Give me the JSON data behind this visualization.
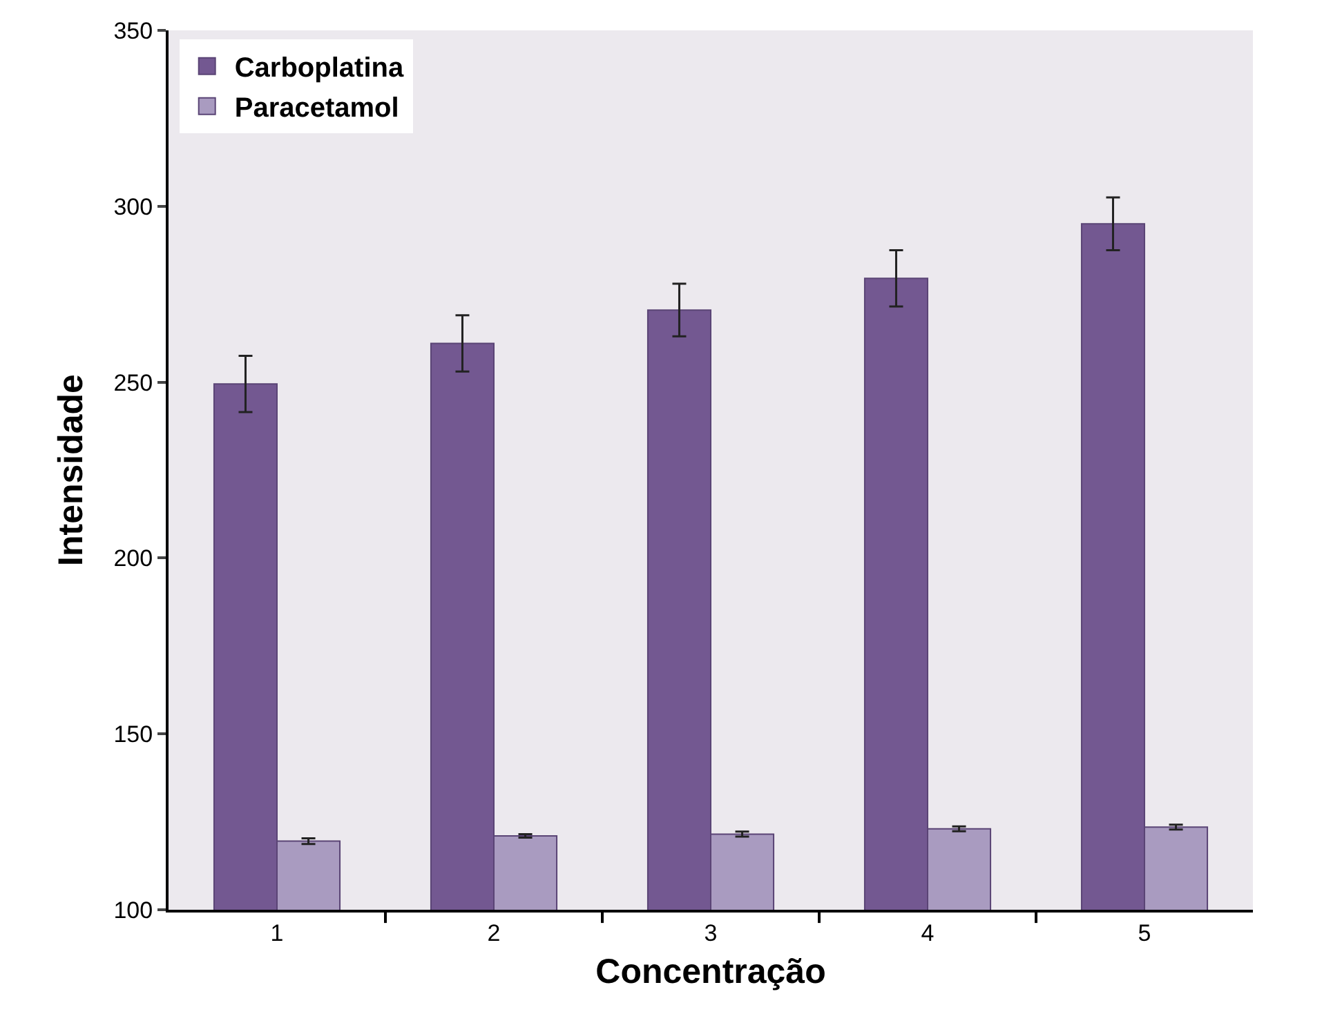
{
  "chart_data": {
    "type": "bar",
    "xlabel": "Concentração",
    "ylabel": "Intensidade",
    "categories": [
      "1",
      "2",
      "3",
      "4",
      "5"
    ],
    "series": [
      {
        "name": "Carboplatina",
        "color": "#735891",
        "values": [
          249.5,
          261,
          270.5,
          279.5,
          295
        ],
        "errors": [
          8,
          8,
          7.5,
          8,
          7.5
        ]
      },
      {
        "name": "Paracetamol",
        "color": "#a99bc0",
        "values": [
          119.5,
          121,
          121.5,
          123,
          123.5
        ],
        "errors": [
          0.8,
          0.5,
          0.7,
          0.7,
          0.7
        ]
      }
    ],
    "ylim": [
      100,
      350
    ],
    "yticks": [
      100,
      150,
      200,
      250,
      300,
      350
    ],
    "grid": false,
    "legend": "top left"
  }
}
